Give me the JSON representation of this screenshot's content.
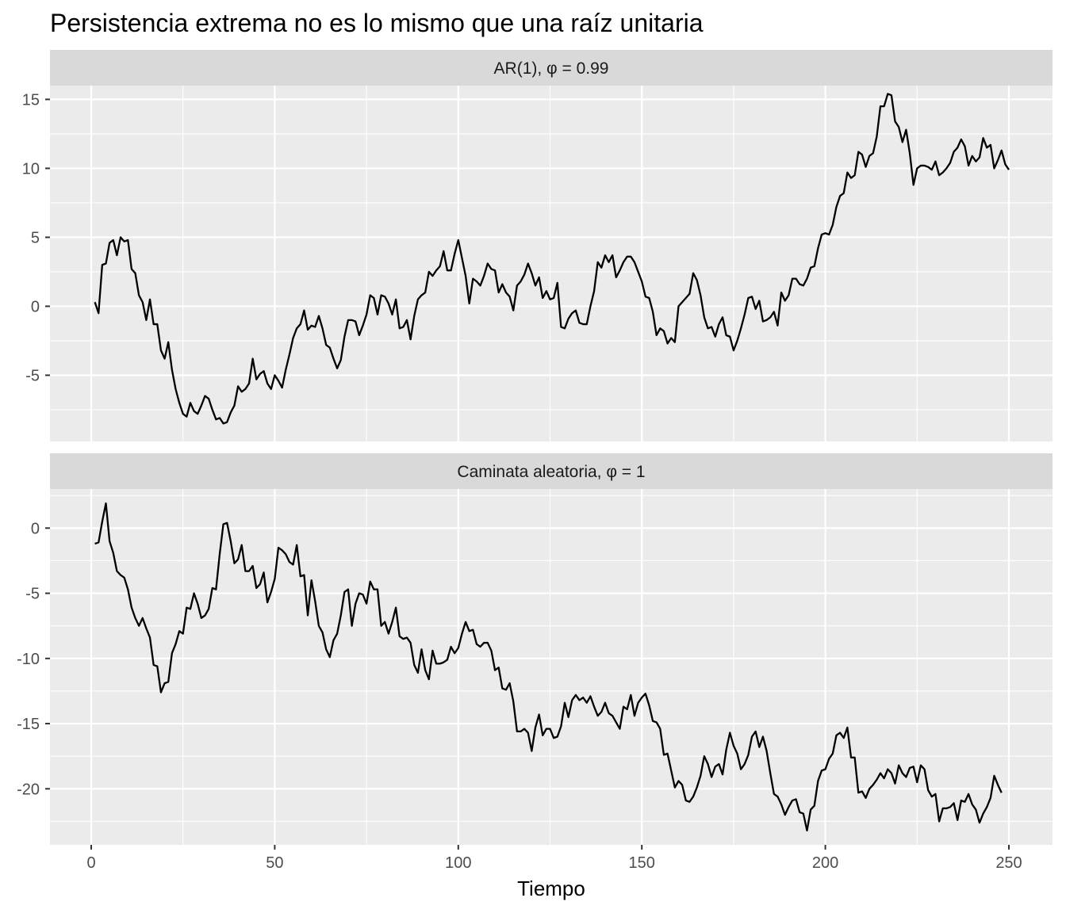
{
  "chart_data": {
    "type": "line",
    "title": "Persistencia extrema no es lo mismo que una raíz unitaria",
    "xlabel": "Tiempo",
    "ylabel": "",
    "xlim": [
      1,
      250
    ],
    "x_ticks": [
      "0",
      "50",
      "100",
      "150",
      "200",
      "250"
    ],
    "line_color": "#000000",
    "panel_background": "#ebebeb",
    "strip_background": "#d9d9d9",
    "grid": true,
    "legend": "none",
    "panels": [
      {
        "strip_label": "AR(1), φ = 0.99",
        "ylim": [
          -9.8,
          16.0
        ],
        "y_ticks": [
          15,
          10,
          5,
          0,
          -5
        ],
        "y_tick_labels": [
          "15",
          "10",
          "5",
          "0",
          "-5"
        ],
        "series": [
          {
            "x_start": 1,
            "values": [
              0.3,
              -0.5,
              3.0,
              3.1,
              4.6,
              4.8,
              3.7,
              5.0,
              4.7,
              4.8,
              2.7,
              2.4,
              0.8,
              0.3,
              -1.0,
              0.5,
              -1.3,
              -1.3,
              -3.2,
              -3.8,
              -2.6,
              -4.6,
              -6.0,
              -7.0,
              -7.8,
              -8.0,
              -7.0,
              -7.6,
              -7.8,
              -7.2,
              -6.5,
              -6.7,
              -7.5,
              -8.2,
              -8.1,
              -8.5,
              -8.4,
              -7.7,
              -7.2,
              -5.8,
              -6.2,
              -6.0,
              -5.6,
              -3.8,
              -5.3,
              -4.9,
              -4.7,
              -5.6,
              -6.0,
              -5.0,
              -5.4,
              -5.9,
              -4.6,
              -3.5,
              -2.3,
              -1.6,
              -1.3,
              -0.3,
              -1.7,
              -1.4,
              -1.5,
              -0.7,
              -1.6,
              -2.8,
              -3.0,
              -3.8,
              -4.5,
              -3.9,
              -2.2,
              -1.0,
              -1.0,
              -1.1,
              -2.1,
              -1.4,
              -0.6,
              0.8,
              0.6,
              -0.6,
              0.8,
              0.7,
              0.2,
              -0.6,
              0.5,
              -1.6,
              -1.5,
              -1.0,
              -2.4,
              -0.7,
              0.5,
              0.8,
              1.0,
              2.5,
              2.2,
              2.6,
              2.9,
              4.0,
              2.6,
              2.6,
              3.8,
              4.8,
              3.5,
              2.2,
              0.2,
              2.0,
              1.8,
              1.5,
              2.2,
              3.1,
              2.7,
              2.6,
              1.0,
              1.6,
              1.0,
              0.7,
              -0.3,
              1.5,
              1.8,
              2.3,
              3.1,
              2.4,
              1.5,
              2.1,
              0.6,
              1.1,
              0.5,
              0.6,
              1.7,
              -1.5,
              -1.6,
              -0.9,
              -0.5,
              -0.3,
              -1.2,
              -1.3,
              -1.3,
              0.0,
              1.1,
              3.2,
              2.8,
              3.7,
              3.2,
              3.7,
              2.1,
              2.6,
              3.2,
              3.6,
              3.6,
              3.2,
              2.5,
              1.8,
              0.7,
              0.6,
              -0.4,
              -2.1,
              -1.6,
              -1.8,
              -2.7,
              -2.3,
              -2.6,
              0.0,
              0.3,
              0.6,
              0.9,
              2.4,
              1.9,
              0.8,
              -0.8,
              -1.6,
              -1.5,
              -2.2,
              -1.3,
              -0.8,
              -2.1,
              -2.2,
              -3.2,
              -2.5,
              -1.6,
              -0.6,
              0.6,
              0.7,
              -0.2,
              0.4,
              -1.1,
              -1.0,
              -0.8,
              -0.4,
              -1.4,
              1.0,
              0.4,
              0.8,
              2.0,
              2.0,
              1.6,
              1.5,
              2.0,
              2.8,
              2.9,
              4.2,
              5.2,
              5.3,
              5.2,
              5.9,
              7.2,
              8.0,
              8.2,
              9.7,
              9.3,
              9.5,
              11.2,
              11.0,
              10.1,
              10.9,
              11.1,
              12.3,
              14.5,
              14.5,
              15.4,
              15.3,
              13.4,
              13.0,
              11.9,
              12.8,
              11.1,
              8.8,
              10.0,
              10.2,
              10.2,
              10.1,
              9.9,
              10.5,
              9.5,
              9.7,
              10.0,
              10.4,
              11.2,
              11.5,
              12.1,
              11.6,
              10.2,
              10.9,
              10.5,
              10.8,
              12.2,
              11.5,
              11.7,
              10.0,
              10.6,
              11.3,
              10.3,
              9.9
            ]
          }
        ]
      },
      {
        "strip_label": "Caminata aleatoria, φ = 1",
        "ylim": [
          -24.3,
          3.0
        ],
        "y_ticks": [
          0,
          -5,
          -10,
          -15,
          -20
        ],
        "y_tick_labels": [
          "0",
          "-5",
          "-10",
          "-15",
          "-20"
        ],
        "series": [
          {
            "x_start": 1,
            "values": [
              -1.2,
              -1.1,
              0.5,
              1.9,
              -1.0,
              -1.9,
              -3.3,
              -3.6,
              -3.8,
              -4.7,
              -6.1,
              -6.9,
              -7.5,
              -6.9,
              -7.7,
              -8.4,
              -10.5,
              -10.6,
              -12.6,
              -11.9,
              -11.8,
              -9.6,
              -8.9,
              -7.9,
              -8.1,
              -6.1,
              -6.2,
              -5.0,
              -5.8,
              -6.9,
              -6.7,
              -6.2,
              -4.6,
              -4.7,
              -2.0,
              0.3,
              0.4,
              -1.0,
              -2.7,
              -2.4,
              -1.3,
              -3.3,
              -3.3,
              -2.9,
              -4.6,
              -4.3,
              -3.4,
              -5.7,
              -4.9,
              -3.9,
              -1.5,
              -1.7,
              -2.0,
              -2.6,
              -2.8,
              -1.3,
              -3.7,
              -3.6,
              -6.7,
              -4.0,
              -5.6,
              -7.5,
              -8.0,
              -9.3,
              -9.9,
              -8.6,
              -8.1,
              -6.7,
              -4.9,
              -4.7,
              -7.5,
              -5.8,
              -5.0,
              -5.1,
              -5.8,
              -4.1,
              -4.7,
              -4.7,
              -7.5,
              -7.2,
              -8.1,
              -7.2,
              -6.1,
              -8.3,
              -8.5,
              -8.4,
              -8.8,
              -10.5,
              -11.1,
              -9.3,
              -10.9,
              -11.6,
              -9.4,
              -10.4,
              -10.4,
              -10.3,
              -10.1,
              -9.1,
              -9.6,
              -9.2,
              -8.1,
              -7.2,
              -7.9,
              -7.8,
              -8.9,
              -9.1,
              -8.8,
              -8.8,
              -9.4,
              -10.9,
              -10.7,
              -12.3,
              -12.4,
              -11.9,
              -13.3,
              -15.6,
              -15.6,
              -15.4,
              -15.7,
              -17.1,
              -15.3,
              -14.3,
              -15.9,
              -15.4,
              -15.4,
              -16.1,
              -16.0,
              -15.2,
              -13.4,
              -14.5,
              -13.2,
              -12.8,
              -13.2,
              -13.0,
              -13.4,
              -12.9,
              -13.7,
              -14.4,
              -14.1,
              -13.4,
              -14.2,
              -14.4,
              -14.9,
              -15.4,
              -13.7,
              -13.9,
              -12.8,
              -14.4,
              -13.4,
              -13.0,
              -12.7,
              -13.6,
              -14.8,
              -14.9,
              -15.4,
              -17.4,
              -17.3,
              -18.6,
              -19.9,
              -19.4,
              -19.7,
              -20.9,
              -21.0,
              -20.6,
              -19.9,
              -19.0,
              -17.5,
              -18.1,
              -19.1,
              -18.3,
              -18.1,
              -18.9,
              -17.0,
              -15.7,
              -16.7,
              -17.3,
              -18.5,
              -18.1,
              -17.4,
              -16.0,
              -15.6,
              -16.8,
              -16.0,
              -17.1,
              -18.8,
              -20.4,
              -20.6,
              -21.2,
              -22.0,
              -21.4,
              -20.9,
              -20.8,
              -21.8,
              -21.9,
              -23.2,
              -21.6,
              -21.3,
              -19.4,
              -18.6,
              -18.5,
              -17.7,
              -17.3,
              -15.9,
              -15.7,
              -16.1,
              -15.3,
              -17.6,
              -17.6,
              -20.3,
              -20.2,
              -20.7,
              -20.0,
              -19.7,
              -19.3,
              -18.8,
              -19.2,
              -18.5,
              -18.8,
              -19.6,
              -18.2,
              -18.8,
              -19.1,
              -18.4,
              -18.3,
              -19.5,
              -18.2,
              -18.5,
              -20.1,
              -20.6,
              -20.4,
              -22.5,
              -21.5,
              -21.5,
              -21.4,
              -21.1,
              -22.4,
              -20.9,
              -21.0,
              -20.4,
              -21.2,
              -21.6,
              -22.6,
              -21.9,
              -21.4,
              -20.7,
              -19.0,
              -19.7,
              -20.3
            ]
          }
        ]
      }
    ]
  }
}
